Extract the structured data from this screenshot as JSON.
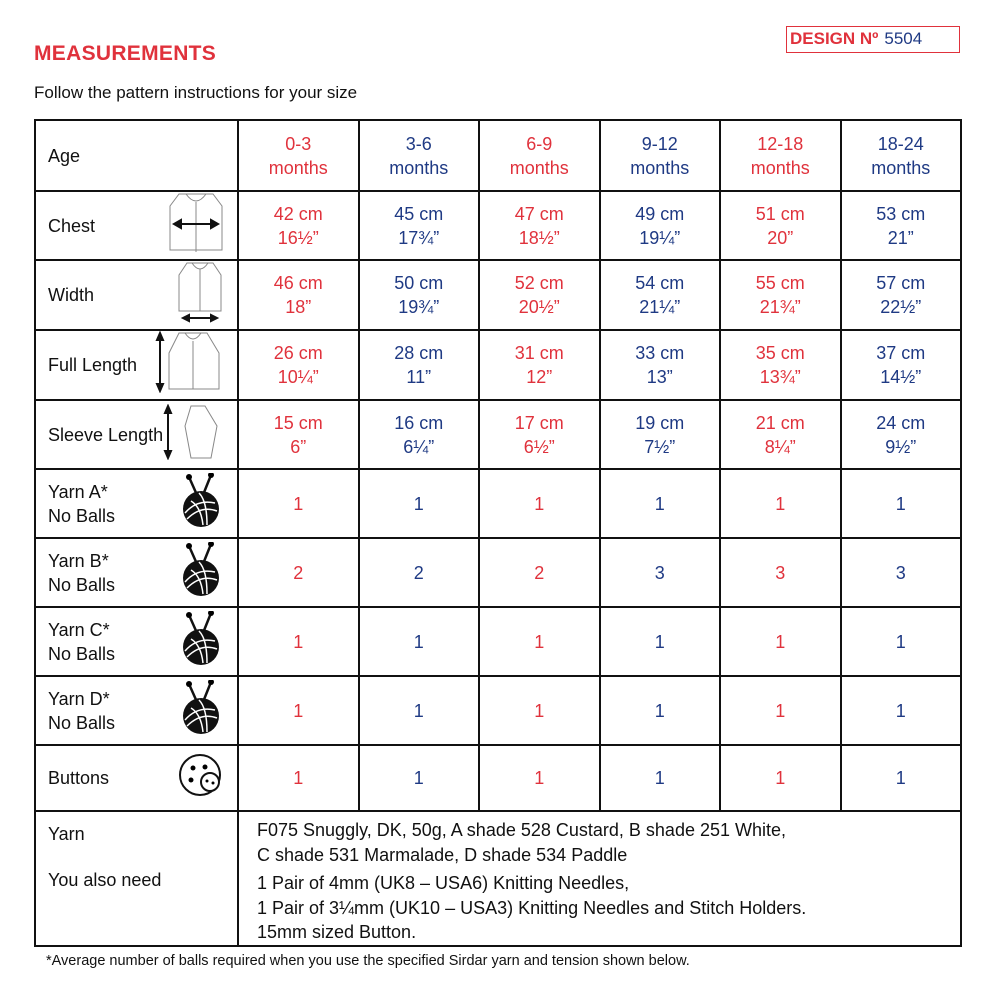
{
  "title": "MEASUREMENTS",
  "design": {
    "label": "DESIGN Nº",
    "number": "5504"
  },
  "subtitle": "Follow the pattern instructions for your size",
  "colors": {
    "red": "#e0323c",
    "blue": "#1f3a84"
  },
  "sizes": [
    {
      "range": "0-3",
      "unit": "months"
    },
    {
      "range": "3-6",
      "unit": "months"
    },
    {
      "range": "6-9",
      "unit": "months"
    },
    {
      "range": "9-12",
      "unit": "months"
    },
    {
      "range": "12-18",
      "unit": "months"
    },
    {
      "range": "18-24",
      "unit": "months"
    }
  ],
  "rows": [
    {
      "label": "Age",
      "icon": ""
    },
    {
      "label": "Chest",
      "icon": "cardigan-chest-icon",
      "values": [
        [
          "42 cm",
          "16½”"
        ],
        [
          "45 cm",
          "17¾”"
        ],
        [
          "47 cm",
          "18½”"
        ],
        [
          "49 cm",
          "19¼”"
        ],
        [
          "51 cm",
          "20”"
        ],
        [
          "53 cm",
          "21”"
        ]
      ]
    },
    {
      "label": "Width",
      "icon": "cardigan-width-icon",
      "values": [
        [
          "46 cm",
          "18”"
        ],
        [
          "50 cm",
          "19¾”"
        ],
        [
          "52 cm",
          "20½”"
        ],
        [
          "54 cm",
          "21¼”"
        ],
        [
          "55 cm",
          "21¾”"
        ],
        [
          "57 cm",
          "22½”"
        ]
      ]
    },
    {
      "label": "Full Length",
      "icon": "cardigan-length-icon",
      "values": [
        [
          "26 cm",
          "10¼”"
        ],
        [
          "28 cm",
          "11”"
        ],
        [
          "31 cm",
          "12”"
        ],
        [
          "33 cm",
          "13”"
        ],
        [
          "35 cm",
          "13¾”"
        ],
        [
          "37 cm",
          "14½”"
        ]
      ]
    },
    {
      "label": "Sleeve Length",
      "icon": "sleeve-length-icon",
      "values": [
        [
          "15 cm",
          "6”"
        ],
        [
          "16 cm",
          "6¼”"
        ],
        [
          "17 cm",
          "6½”"
        ],
        [
          "19 cm",
          "7½”"
        ],
        [
          "21 cm",
          "8¼”"
        ],
        [
          "24 cm",
          "9½”"
        ]
      ]
    },
    {
      "label": "Yarn A*",
      "label2": "No Balls",
      "icon": "yarn-ball-icon",
      "values": [
        "1",
        "1",
        "1",
        "1",
        "1",
        "1"
      ]
    },
    {
      "label": "Yarn B*",
      "label2": "No Balls",
      "icon": "yarn-ball-icon",
      "values": [
        "2",
        "2",
        "2",
        "3",
        "3",
        "3"
      ]
    },
    {
      "label": "Yarn C*",
      "label2": "No Balls",
      "icon": "yarn-ball-icon",
      "values": [
        "1",
        "1",
        "1",
        "1",
        "1",
        "1"
      ]
    },
    {
      "label": "Yarn D*",
      "label2": "No Balls",
      "icon": "yarn-ball-icon",
      "values": [
        "1",
        "1",
        "1",
        "1",
        "1",
        "1"
      ]
    },
    {
      "label": "Buttons",
      "icon": "buttons-icon",
      "values": [
        "1",
        "1",
        "1",
        "1",
        "1",
        "1"
      ]
    }
  ],
  "info": {
    "yarn_label": "Yarn",
    "yarn_lines": [
      "F075 Snuggly, DK, 50g, A shade 528 Custard, B shade 251 White,",
      "C shade 531 Marmalade, D shade 534 Paddle"
    ],
    "need_label": "You also need",
    "need_lines": [
      "1 Pair of 4mm (UK8 – USA6) Knitting Needles,",
      "1 Pair of 3¼mm (UK10 – USA3) Knitting Needles and Stitch Holders.",
      "15mm sized Button."
    ]
  },
  "footnote": "*Average number of balls required when you use the specified Sirdar yarn and tension shown below."
}
